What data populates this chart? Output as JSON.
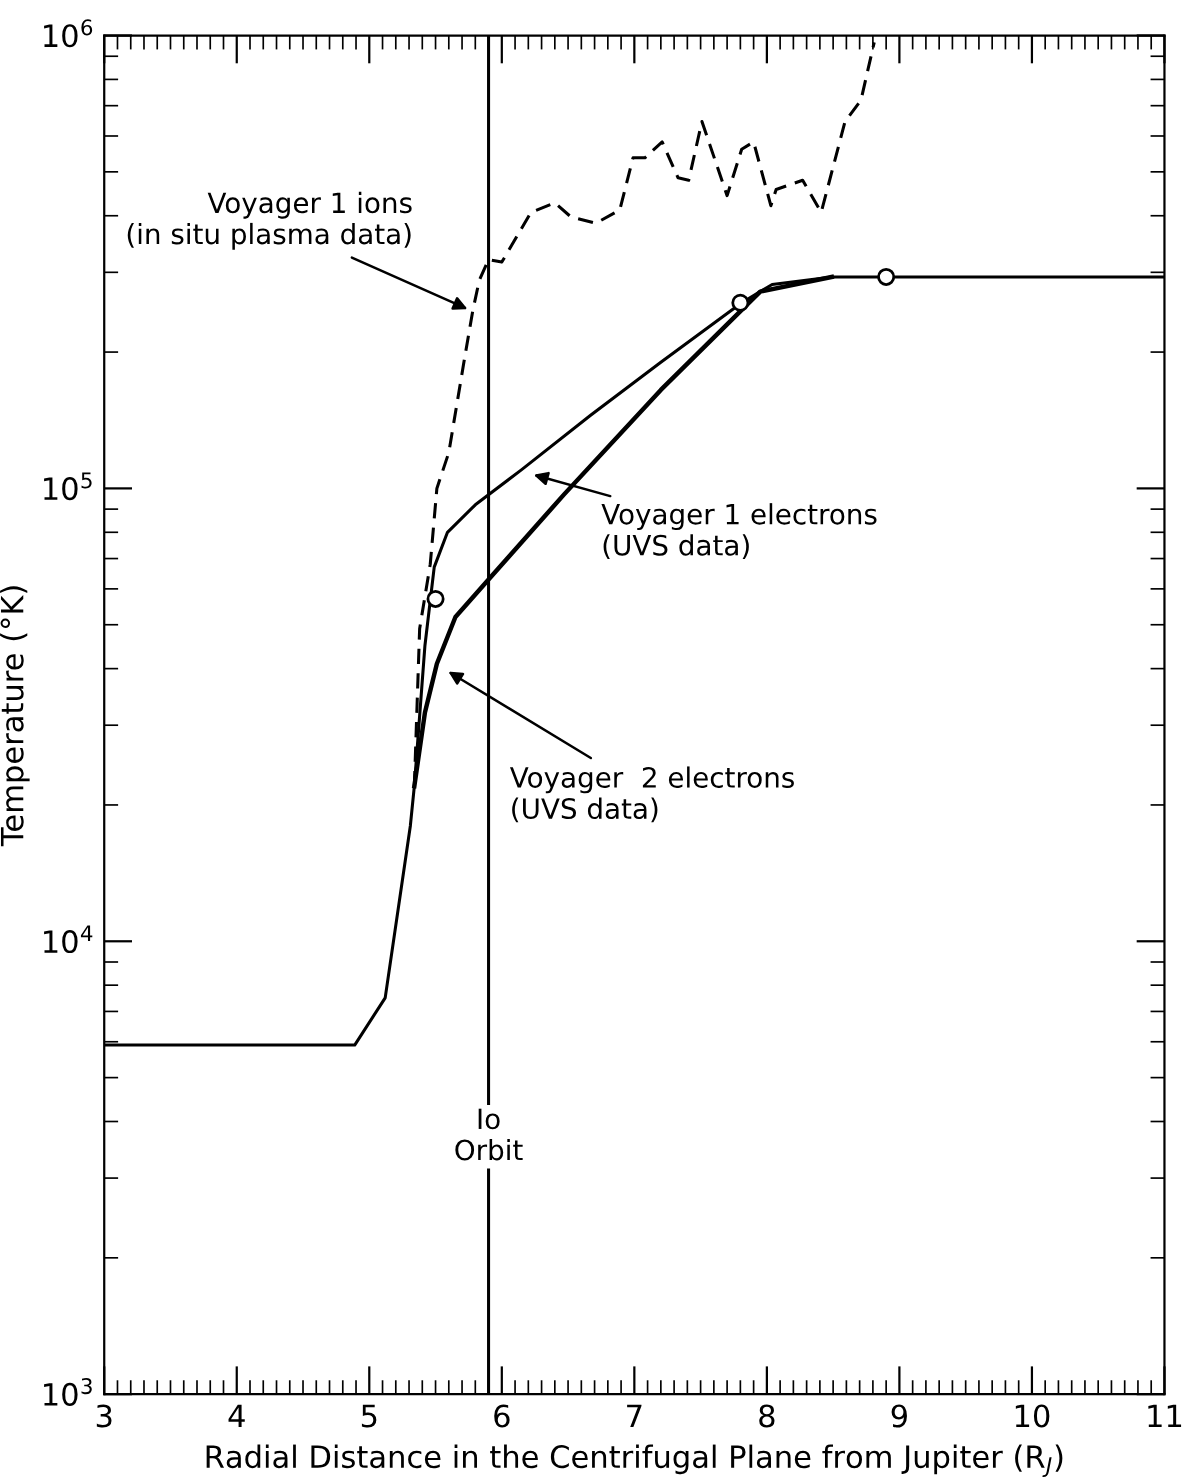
{
  "chart_data": {
    "type": "line",
    "xlabel": "Radial Distance in the Centrifugal Plane from Jupiter (R$_{J}$)",
    "ylabel": "Temperature (°K)",
    "log": "y",
    "xlim": [
      3,
      11
    ],
    "ylim": [
      1000,
      1000000
    ],
    "xticks": [
      3,
      4,
      5,
      6,
      7,
      8,
      9,
      10,
      11
    ],
    "yticks": [
      {
        "value": 1000,
        "label": "10$^{3}$"
      },
      {
        "value": 10000,
        "label": "10$^{4}$"
      },
      {
        "value": 100000,
        "label": "10$^{5}$"
      },
      {
        "value": 1000000,
        "label": "10$^{6}$"
      }
    ],
    "grid": false,
    "legend": false,
    "series": [
      {
        "color": "#000000",
        "line_style": "dashed",
        "x": [
          5.34,
          5.38,
          5.46,
          5.51,
          5.6,
          5.71,
          5.78,
          5.83,
          5.9,
          6.0,
          6.22,
          6.4,
          6.52,
          6.71,
          6.89,
          6.99,
          7.08,
          7.21,
          7.33,
          7.41,
          7.51,
          7.7,
          7.81,
          7.9,
          8.03,
          8.07,
          8.27,
          8.41,
          8.59,
          8.71,
          8.81
        ],
        "values": [
          22000,
          49000,
          68000,
          100000,
          120000,
          187000,
          246000,
          288000,
          320000,
          316000,
          407000,
          427000,
          398000,
          385000,
          412000,
          537000,
          537000,
          582000,
          485000,
          479000,
          646000,
          443000,
          561000,
          582000,
          421000,
          457000,
          479000,
          407000,
          646000,
          720000,
          966000
        ]
      },
      {
        "color": "#000000",
        "line_style": "solid",
        "x": [
          3,
          4.89,
          5.12,
          5.31,
          5.34,
          5.42,
          5.49,
          5.59,
          5.8,
          6.15,
          6.67,
          7.2,
          7.81,
          8.04,
          8.49,
          11
        ],
        "values": [
          5900,
          5900,
          7500,
          18000,
          22000,
          45000,
          67000,
          80000,
          92000,
          110000,
          145000,
          190000,
          257000,
          282000,
          293000,
          293000
        ]
      },
      {
        "color": "#000000",
        "line_style": "solid",
        "x": [
          5.34,
          5.42,
          5.51,
          5.65,
          5.88,
          6.47,
          7.2,
          7.95,
          8.49
        ],
        "values": [
          22000,
          32000,
          41000,
          52000,
          62000,
          97000,
          165000,
          272000,
          293000
        ]
      },
      {
        "type": "scatter",
        "marker": "circle",
        "color": "#000000",
        "x": [
          5.5,
          7.8,
          8.9
        ],
        "values": [
          57000,
          257000,
          293000
        ]
      }
    ],
    "ref_lines": [
      {
        "axis": "x",
        "value": 5.9,
        "label": "Io\nOrbit",
        "color": "#000000"
      }
    ],
    "annotations": [
      {
        "text": "Voyager 1 ions\n(in situ plasma data)",
        "x": 5.78,
        "y": 246000
      },
      {
        "text": "Voyager 1 electrons\n(UVS data)",
        "x": 6.2,
        "y": 108000
      },
      {
        "text": "Voyager  2 electrons\n(UVS data)",
        "x": 5.56,
        "y": 40000
      }
    ]
  }
}
